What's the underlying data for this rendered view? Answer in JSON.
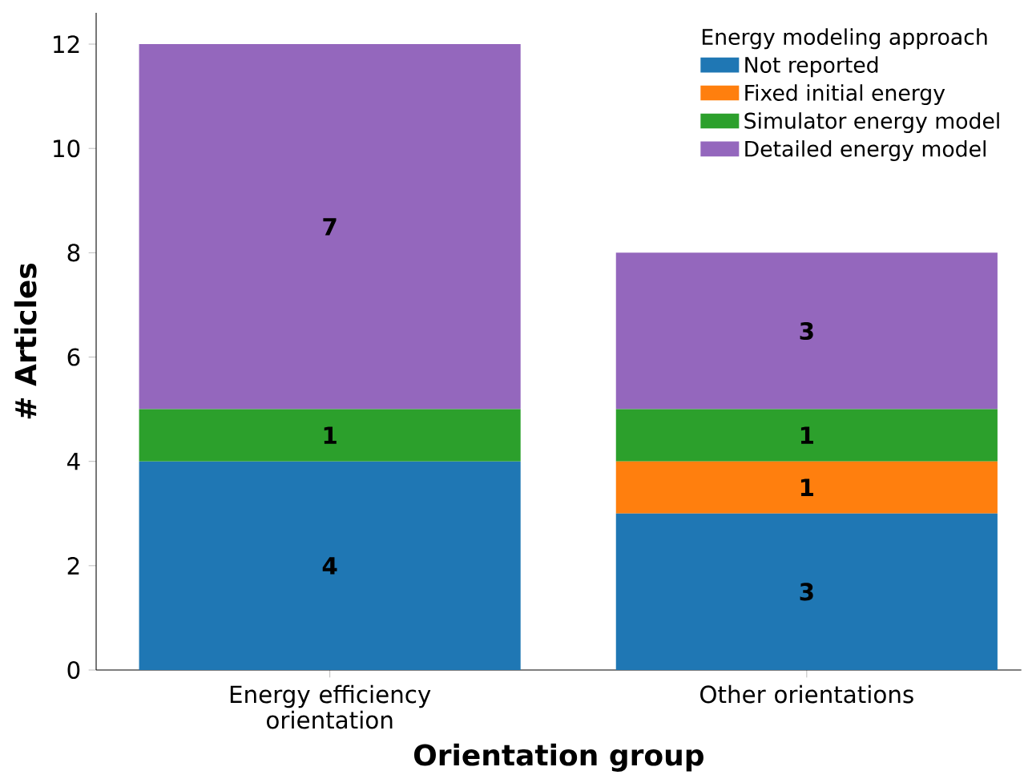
{
  "chart_data": {
    "type": "bar",
    "stacked": true,
    "xlabel": "Orientation group",
    "ylabel": "# Articles",
    "legend_title": "Energy modeling approach",
    "categories": [
      "Energy efficiency orientation",
      "Other orientations"
    ],
    "series": [
      {
        "name": "Not reported",
        "color": "#1f77b4",
        "values": [
          4,
          3
        ],
        "value_labels": [
          "4",
          "3"
        ]
      },
      {
        "name": "Fixed initial energy",
        "color": "#ff7f0e",
        "values": [
          0,
          1
        ],
        "value_labels": [
          null,
          "1"
        ]
      },
      {
        "name": "Simulator energy model",
        "color": "#2ca02c",
        "values": [
          1,
          1
        ],
        "value_labels": [
          "1",
          "1"
        ]
      },
      {
        "name": "Detailed energy model",
        "color": "#9467bd",
        "values": [
          7,
          3
        ],
        "value_labels": [
          "7",
          "3"
        ]
      }
    ],
    "ylim": [
      0,
      12.6
    ],
    "yticks": [
      0,
      2,
      4,
      6,
      8,
      10,
      12
    ],
    "grid": false,
    "legend": "top right"
  }
}
